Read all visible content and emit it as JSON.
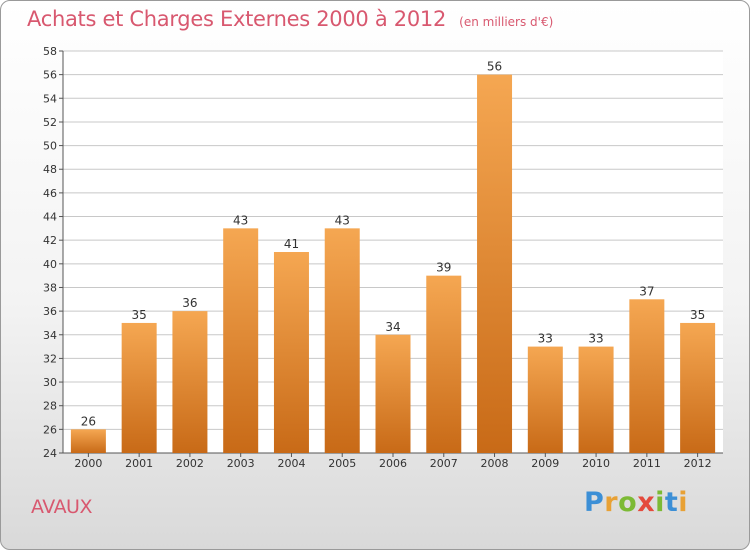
{
  "chart_data": {
    "type": "bar",
    "title": "Achats et Charges Externes 2000 à 2012",
    "unit_note": "(en milliers d'€)",
    "categories": [
      "2000",
      "2001",
      "2002",
      "2003",
      "2004",
      "2005",
      "2006",
      "2007",
      "2008",
      "2009",
      "2010",
      "2011",
      "2012"
    ],
    "values": [
      26,
      35,
      36,
      43,
      41,
      43,
      34,
      39,
      56,
      33,
      33,
      37,
      35
    ],
    "ylim": [
      24,
      58
    ],
    "yticks": [
      24,
      26,
      28,
      30,
      32,
      34,
      36,
      38,
      40,
      42,
      44,
      46,
      48,
      50,
      52,
      54,
      56,
      58
    ],
    "grid": true,
    "xlabel": "",
    "ylabel": "",
    "colors": {
      "bar_light": "#f5a752",
      "bar_dark": "#c86a17",
      "grid": "#c8c8c8"
    }
  },
  "commune": "AVAUX",
  "logo": {
    "text": "Proxiti"
  }
}
